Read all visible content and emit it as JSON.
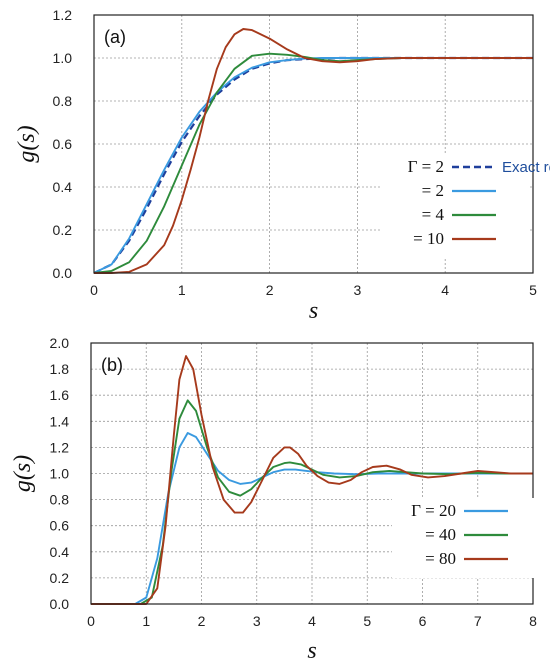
{
  "colors": {
    "exact": "#1f3f9c",
    "blue": "#3a9ae0",
    "green": "#2e8b3c",
    "red": "#a63a1c"
  },
  "chart_data": [
    {
      "type": "line",
      "panel_label": "(a)",
      "xlabel": "s",
      "ylabel": "g(s)",
      "xlim": [
        0,
        5
      ],
      "ylim": [
        0,
        1.2
      ],
      "xticks": [
        "0",
        "1",
        "2",
        "3",
        "4",
        "5"
      ],
      "yticks": [
        "0.0",
        "0.2",
        "0.4",
        "0.6",
        "0.8",
        "1.0",
        "1.2"
      ],
      "grid": true,
      "legend_position": "center-right",
      "series": [
        {
          "name": "Exact result",
          "legend_prefix": "Γ = 2",
          "style": "dashed",
          "color_key": "exact",
          "x": [
            0,
            0.2,
            0.4,
            0.6,
            0.8,
            1.0,
            1.2,
            1.4,
            1.6,
            1.8,
            2.0,
            2.2,
            2.4,
            2.6,
            2.8,
            3.0,
            3.5,
            4.0,
            4.5,
            5.0
          ],
          "y": [
            0,
            0.04,
            0.15,
            0.3,
            0.46,
            0.61,
            0.73,
            0.83,
            0.9,
            0.95,
            0.975,
            0.99,
            0.995,
            0.998,
            1.0,
            1.0,
            1.0,
            1.0,
            1.0,
            1.0
          ]
        },
        {
          "name": "= 2",
          "style": "solid",
          "color_key": "blue",
          "x": [
            0,
            0.2,
            0.4,
            0.6,
            0.8,
            1.0,
            1.2,
            1.4,
            1.6,
            1.8,
            2.0,
            2.2,
            2.4,
            2.6,
            2.8,
            3.0,
            3.5,
            4.0,
            4.5,
            5.0
          ],
          "y": [
            0,
            0.04,
            0.16,
            0.32,
            0.48,
            0.63,
            0.75,
            0.84,
            0.91,
            0.955,
            0.98,
            0.99,
            0.997,
            1.0,
            1.0,
            1.0,
            1.0,
            1.0,
            1.0,
            1.0
          ]
        },
        {
          "name": "= 4",
          "style": "solid",
          "color_key": "green",
          "x": [
            0,
            0.2,
            0.4,
            0.6,
            0.8,
            1.0,
            1.2,
            1.4,
            1.6,
            1.8,
            2.0,
            2.2,
            2.4,
            2.6,
            2.8,
            3.0,
            3.2,
            3.5,
            4.0,
            4.5,
            5.0
          ],
          "y": [
            0,
            0.01,
            0.05,
            0.15,
            0.31,
            0.5,
            0.69,
            0.84,
            0.95,
            1.01,
            1.02,
            1.015,
            1.005,
            0.99,
            0.985,
            0.99,
            0.995,
            1.0,
            1.0,
            1.0,
            1.0
          ]
        },
        {
          "name": "= 10",
          "style": "solid",
          "color_key": "red",
          "x": [
            0,
            0.2,
            0.4,
            0.6,
            0.8,
            0.9,
            1.0,
            1.1,
            1.2,
            1.3,
            1.4,
            1.5,
            1.6,
            1.7,
            1.8,
            2.0,
            2.2,
            2.4,
            2.6,
            2.8,
            3.0,
            3.2,
            3.5,
            4.0,
            4.5,
            5.0
          ],
          "y": [
            0,
            0,
            0.005,
            0.04,
            0.13,
            0.22,
            0.34,
            0.48,
            0.63,
            0.8,
            0.95,
            1.05,
            1.11,
            1.135,
            1.13,
            1.09,
            1.04,
            1.0,
            0.985,
            0.98,
            0.985,
            0.995,
            1.0,
            1.0,
            1.0,
            1.0
          ]
        }
      ]
    },
    {
      "type": "line",
      "panel_label": "(b)",
      "xlabel": "s",
      "ylabel": "g(s)",
      "xlim": [
        0,
        8
      ],
      "ylim": [
        0,
        2.0
      ],
      "xticks": [
        "0",
        "1",
        "2",
        "3",
        "4",
        "5",
        "6",
        "7",
        "8"
      ],
      "yticks": [
        "0.0",
        "0.2",
        "0.4",
        "0.6",
        "0.8",
        "1.0",
        "1.2",
        "1.4",
        "1.6",
        "1.8",
        "2.0"
      ],
      "grid": true,
      "legend_position": "center-right",
      "series": [
        {
          "name": "Γ = 20",
          "style": "solid",
          "color_key": "blue",
          "x": [
            0,
            0.8,
            1.0,
            1.2,
            1.4,
            1.6,
            1.75,
            1.9,
            2.1,
            2.3,
            2.5,
            2.7,
            2.9,
            3.1,
            3.3,
            3.5,
            3.7,
            3.9,
            4.1,
            4.4,
            4.8,
            5.2,
            5.6,
            6.0,
            7.0,
            8.0
          ],
          "y": [
            0,
            0.0,
            0.05,
            0.35,
            0.85,
            1.2,
            1.31,
            1.28,
            1.15,
            1.02,
            0.95,
            0.92,
            0.93,
            0.97,
            1.01,
            1.03,
            1.03,
            1.02,
            1.01,
            1.0,
            0.995,
            1.0,
            1.0,
            1.0,
            1.0,
            1.0
          ]
        },
        {
          "name": "= 40",
          "style": "solid",
          "color_key": "green",
          "x": [
            0,
            0.9,
            1.1,
            1.3,
            1.45,
            1.6,
            1.75,
            1.9,
            2.1,
            2.3,
            2.5,
            2.7,
            2.9,
            3.1,
            3.3,
            3.5,
            3.6,
            3.8,
            4.0,
            4.2,
            4.5,
            4.8,
            5.1,
            5.4,
            5.7,
            6.0,
            6.5,
            7.0,
            7.5,
            8.0
          ],
          "y": [
            0,
            0.0,
            0.05,
            0.45,
            1.0,
            1.42,
            1.56,
            1.48,
            1.2,
            0.97,
            0.86,
            0.83,
            0.88,
            0.97,
            1.05,
            1.08,
            1.085,
            1.07,
            1.03,
            0.99,
            0.97,
            0.98,
            1.01,
            1.02,
            1.01,
            1.0,
            0.995,
            1.005,
            1.0,
            1.0
          ]
        },
        {
          "name": "= 80",
          "style": "solid",
          "color_key": "red",
          "x": [
            0,
            1.0,
            1.2,
            1.35,
            1.5,
            1.6,
            1.72,
            1.85,
            2.0,
            2.2,
            2.4,
            2.6,
            2.75,
            2.9,
            3.1,
            3.3,
            3.5,
            3.6,
            3.75,
            3.9,
            4.1,
            4.3,
            4.5,
            4.7,
            4.9,
            5.1,
            5.35,
            5.6,
            5.8,
            6.1,
            6.4,
            6.7,
            7.0,
            7.3,
            7.6,
            8.0
          ],
          "y": [
            0,
            0.0,
            0.12,
            0.6,
            1.3,
            1.72,
            1.9,
            1.8,
            1.45,
            1.05,
            0.8,
            0.7,
            0.7,
            0.78,
            0.95,
            1.12,
            1.2,
            1.2,
            1.15,
            1.06,
            0.98,
            0.93,
            0.92,
            0.95,
            1.01,
            1.05,
            1.06,
            1.03,
            0.99,
            0.97,
            0.98,
            1.0,
            1.02,
            1.01,
            1.0,
            1.0
          ]
        }
      ]
    }
  ]
}
